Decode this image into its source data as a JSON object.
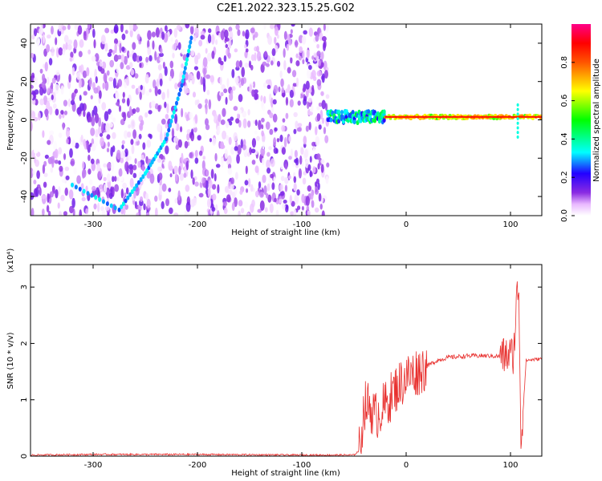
{
  "title": "C2E1.2022.323.15.25.G02",
  "colors": {
    "snr_line": "#e8312f",
    "axis": "#000000"
  },
  "chart_data": [
    {
      "type": "heatmap",
      "xlabel": "Height of straight line (km)",
      "ylabel": "Frequency (Hz)",
      "xlim": [
        -360,
        130
      ],
      "ylim": [
        -50,
        50
      ],
      "xticks": [
        -300,
        -200,
        -100,
        0,
        100
      ],
      "yticks": [
        -40,
        -20,
        0,
        20,
        40
      ],
      "colorbar": {
        "label": "Normalized spectral amplitude",
        "range": [
          0,
          1
        ],
        "ticks": [
          0.0,
          0.2,
          0.4,
          0.6,
          0.8
        ],
        "colormap": "rainbow (white → purple → blue → cyan → green → yellow → red → magenta)"
      },
      "features": [
        {
          "name": "noise_region",
          "x_range": [
            -360,
            -75
          ],
          "amplitude": [
            0.0,
            0.15
          ]
        },
        {
          "name": "chirp_track",
          "points": [
            [
              -320,
              -34
            ],
            [
              -275,
              -47
            ],
            [
              -250,
              -28
            ],
            [
              -230,
              -10
            ],
            [
              -215,
              18
            ],
            [
              -205,
              45
            ]
          ],
          "amplitude": 0.25
        },
        {
          "name": "carrier_line",
          "freq": 1.5,
          "x_range": [
            -75,
            130
          ],
          "amplitude": 0.65
        },
        {
          "name": "carrier_spike",
          "x": 107,
          "amplitude": 0.35
        }
      ]
    },
    {
      "type": "line",
      "xlabel": "Height of straight line (km)",
      "ylabel": "SNR (10 * v/v)",
      "y_multiplier": "(x10⁴)",
      "xlim": [
        -360,
        130
      ],
      "ylim": [
        0,
        3.4
      ],
      "xticks": [
        -300,
        -200,
        -100,
        0,
        100
      ],
      "yticks": [
        0,
        1,
        2,
        3
      ],
      "series": [
        {
          "x": [
            -360,
            -300,
            -200,
            -100,
            -50,
            -45,
            -40,
            -35,
            -30,
            -20,
            -10,
            0,
            10,
            20,
            30,
            40,
            60,
            80,
            90,
            100,
            103,
            106,
            108,
            110,
            115,
            130
          ],
          "y": [
            0.02,
            0.03,
            0.03,
            0.02,
            0.02,
            0.1,
            0.9,
            0.9,
            0.7,
            0.9,
            1.2,
            1.4,
            1.5,
            1.6,
            1.7,
            1.75,
            1.78,
            1.78,
            1.77,
            1.8,
            1.8,
            2.8,
            3.0,
            0.2,
            1.7,
            1.73
          ]
        }
      ]
    }
  ]
}
